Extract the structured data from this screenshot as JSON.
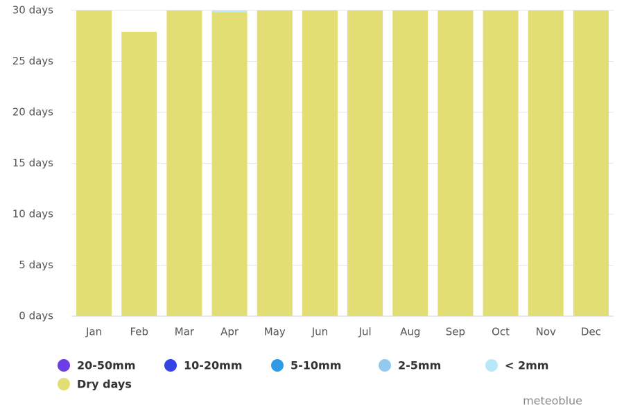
{
  "chart_data": {
    "type": "stacked-bar",
    "categories": [
      "Jan",
      "Feb",
      "Mar",
      "Apr",
      "May",
      "Jun",
      "Jul",
      "Aug",
      "Sep",
      "Oct",
      "Nov",
      "Dec"
    ],
    "series": [
      {
        "name": "20-50mm",
        "color": "#6c3ce6",
        "values": [
          0,
          0,
          0,
          0,
          0,
          0,
          0,
          0,
          0,
          0,
          0,
          0
        ]
      },
      {
        "name": "10-20mm",
        "color": "#3442e6",
        "values": [
          0,
          0,
          0,
          0,
          0,
          0,
          0,
          0,
          0,
          0,
          0,
          0
        ]
      },
      {
        "name": "5-10mm",
        "color": "#2f9be6",
        "values": [
          0,
          0,
          0,
          0,
          0,
          0,
          0,
          0,
          0,
          0,
          0,
          0
        ]
      },
      {
        "name": "2-5mm",
        "color": "#93c9f1",
        "values": [
          0,
          0,
          0,
          0,
          0,
          0,
          0,
          0,
          0,
          0,
          0,
          0
        ]
      },
      {
        "name": "< 2mm",
        "color": "#b7e7f8",
        "values": [
          0,
          0,
          0,
          0.2,
          0,
          0,
          0,
          0,
          0,
          0,
          0,
          0
        ]
      },
      {
        "name": "Dry days",
        "color": "#e3de74",
        "values": [
          30,
          27.9,
          30,
          29.8,
          30,
          30,
          30,
          30,
          30,
          30,
          30,
          30
        ]
      }
    ],
    "ylim": [
      0,
      30
    ],
    "yticks": [
      {
        "value": 0,
        "label": "0 days"
      },
      {
        "value": 5,
        "label": "5 days"
      },
      {
        "value": 10,
        "label": "10 days"
      },
      {
        "value": 15,
        "label": "15 days"
      },
      {
        "value": 20,
        "label": "20 days"
      },
      {
        "value": 25,
        "label": "25 days"
      },
      {
        "value": 30,
        "label": "30 days"
      }
    ],
    "grid": true,
    "credit": "meteoblue"
  }
}
